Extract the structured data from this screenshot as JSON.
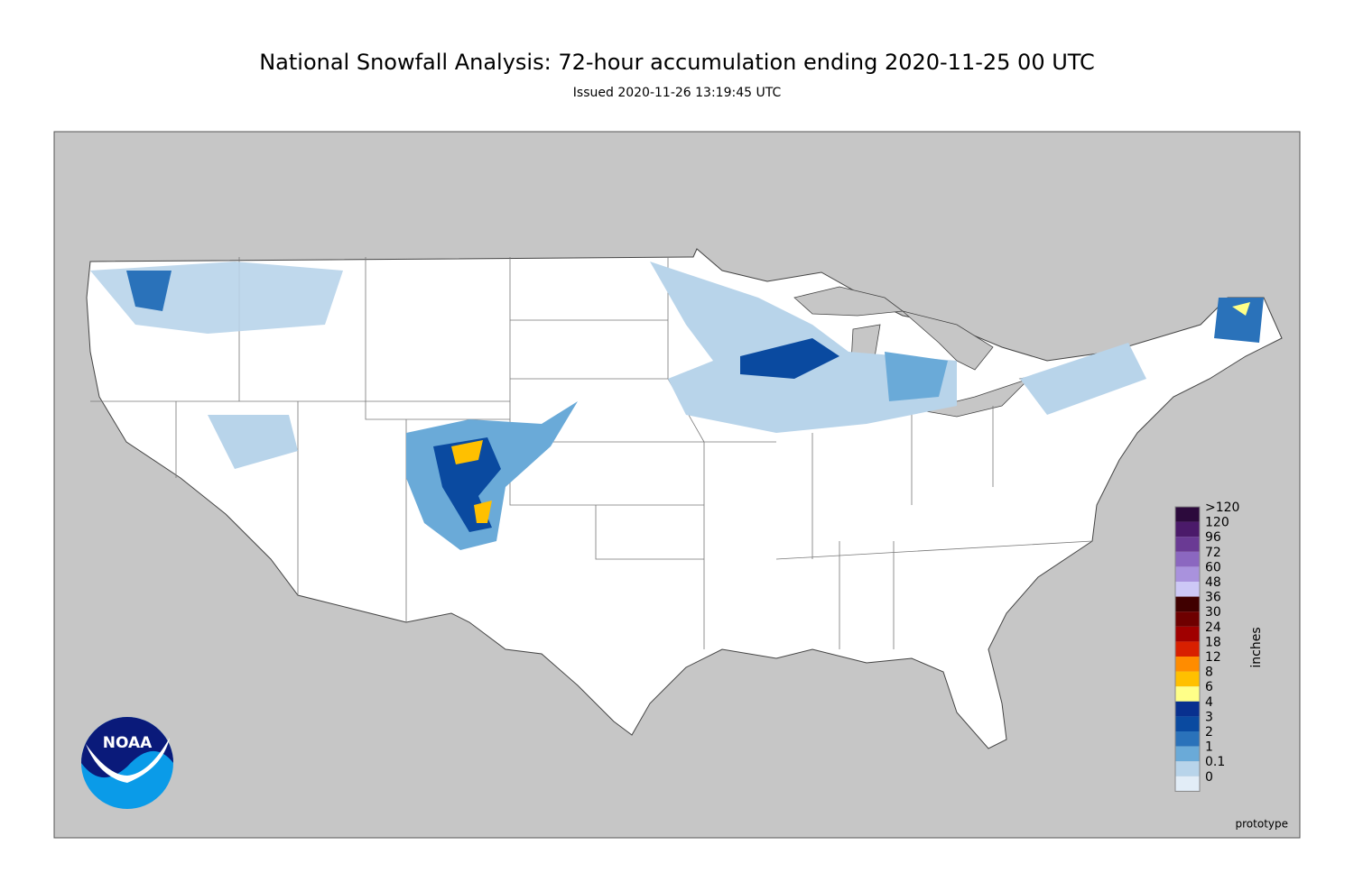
{
  "header": {
    "title": "National Snowfall Analysis: 72-hour accumulation ending 2020-11-25 00 UTC",
    "subtitle": "Issued 2020-11-26 13:19:45 UTC"
  },
  "legend": {
    "title": "inches",
    "entries": [
      {
        "label": ">120",
        "color": "#2c0a3c"
      },
      {
        "label": "120",
        "color": "#4b1a6a"
      },
      {
        "label": "96",
        "color": "#6a3a94"
      },
      {
        "label": "72",
        "color": "#8b67c0"
      },
      {
        "label": "60",
        "color": "#a992dd"
      },
      {
        "label": "48",
        "color": "#cdc8f6"
      },
      {
        "label": "36",
        "color": "#400000"
      },
      {
        "label": "30",
        "color": "#6e0000"
      },
      {
        "label": "24",
        "color": "#a00000"
      },
      {
        "label": "18",
        "color": "#d82000"
      },
      {
        "label": "12",
        "color": "#ff8c00"
      },
      {
        "label": "8",
        "color": "#ffc000"
      },
      {
        "label": "6",
        "color": "#ffff88"
      },
      {
        "label": "4",
        "color": "#08308f"
      },
      {
        "label": "3",
        "color": "#0a4aa0"
      },
      {
        "label": "2",
        "color": "#2a72ba"
      },
      {
        "label": "1",
        "color": "#6aaad8"
      },
      {
        "label": "0.1",
        "color": "#b8d4ea"
      },
      {
        "label": "0",
        "color": "#e2edf7"
      }
    ]
  },
  "footnote": "prototype",
  "logo": {
    "text": "NOAA"
  }
}
